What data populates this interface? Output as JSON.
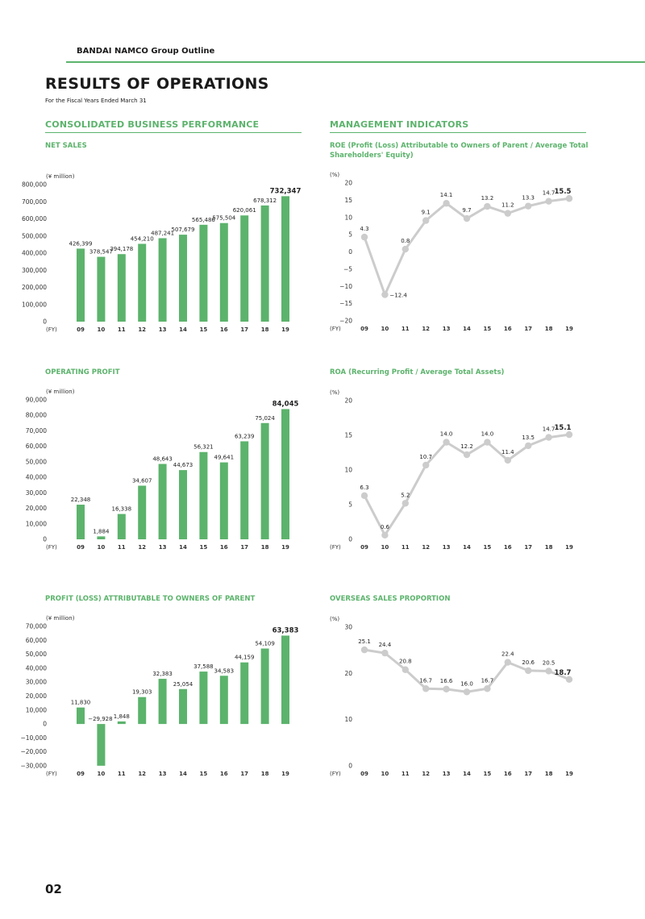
{
  "header": {
    "brand": "BANDAI NAMCO Group Outline",
    "title": "RESULTS OF OPERATIONS",
    "subtitle": "For the Fiscal Years Ended March 31"
  },
  "sections": {
    "left": "CONSOLIDATED BUSINESS PERFORMANCE",
    "right": "MANAGEMENT INDICATORS"
  },
  "page_number": "02",
  "colors": {
    "accent": "#5cb36c",
    "bar": "#5cb36c",
    "line": "#cccccc"
  },
  "chart_data": [
    {
      "id": "net_sales",
      "type": "bar",
      "title": "NET SALES",
      "unit_label": "(¥ million)",
      "x_label": "(FY)",
      "categories": [
        "09",
        "10",
        "11",
        "12",
        "13",
        "14",
        "15",
        "16",
        "17",
        "18",
        "19"
      ],
      "values": [
        426399,
        378547,
        394178,
        454210,
        487241,
        507679,
        565486,
        575504,
        620061,
        678312,
        732347
      ],
      "labels": [
        "426,399",
        "378,547",
        "394,178",
        "454,210",
        "487,241",
        "507,679",
        "565,486",
        "575,504",
        "620,061",
        "678,312",
        "732,347"
      ],
      "ylim": [
        0,
        800000
      ],
      "yticks": [
        0,
        100000,
        200000,
        300000,
        400000,
        500000,
        600000,
        700000,
        800000
      ],
      "ytick_labels": [
        "0",
        "100,000",
        "200,000",
        "300,000",
        "400,000",
        "500,000",
        "600,000",
        "700,000",
        "800,000"
      ]
    },
    {
      "id": "operating_profit",
      "type": "bar",
      "title": "OPERATING PROFIT",
      "unit_label": "(¥ million)",
      "x_label": "(FY)",
      "categories": [
        "09",
        "10",
        "11",
        "12",
        "13",
        "14",
        "15",
        "16",
        "17",
        "18",
        "19"
      ],
      "values": [
        22348,
        1884,
        16338,
        34607,
        48643,
        44673,
        56321,
        49641,
        63239,
        75024,
        84045
      ],
      "labels": [
        "22,348",
        "1,884",
        "16,338",
        "34,607",
        "48,643",
        "44,673",
        "56,321",
        "49,641",
        "63,239",
        "75,024",
        "84,045"
      ],
      "ylim": [
        0,
        90000
      ],
      "yticks": [
        0,
        10000,
        20000,
        30000,
        40000,
        50000,
        60000,
        70000,
        80000,
        90000
      ],
      "ytick_labels": [
        "0",
        "10,000",
        "20,000",
        "30,000",
        "40,000",
        "50,000",
        "60,000",
        "70,000",
        "80,000",
        "90,000"
      ]
    },
    {
      "id": "profit_attributable",
      "type": "bar",
      "title": "PROFIT (LOSS) ATTRIBUTABLE TO OWNERS OF PARENT",
      "unit_label": "(¥ million)",
      "x_label": "(FY)",
      "categories": [
        "09",
        "10",
        "11",
        "12",
        "13",
        "14",
        "15",
        "16",
        "17",
        "18",
        "19"
      ],
      "values": [
        11830,
        -29928,
        1848,
        19303,
        32383,
        25054,
        37588,
        34583,
        44159,
        54109,
        63383
      ],
      "labels": [
        "11,830",
        "−29,928",
        "1,848",
        "19,303",
        "32,383",
        "25,054",
        "37,588",
        "34,583",
        "44,159",
        "54,109",
        "63,383"
      ],
      "ylim": [
        -30000,
        70000
      ],
      "yticks": [
        -30000,
        -20000,
        -10000,
        0,
        10000,
        20000,
        30000,
        40000,
        50000,
        60000,
        70000
      ],
      "ytick_labels": [
        "−30,000",
        "−20,000",
        "−10,000",
        "0",
        "10,000",
        "20,000",
        "30,000",
        "40,000",
        "50,000",
        "60,000",
        "70,000"
      ]
    },
    {
      "id": "roe",
      "type": "line",
      "title": "ROE (Profit (Loss) Attributable to Owners of Parent / Average Total Shareholders' Equity)",
      "title_main": "ROE",
      "title_note": "(Profit (Loss) Attributable to Owners of Parent / Average Total Shareholders' Equity)",
      "unit_label": "(%)",
      "x_label": "(FY)",
      "categories": [
        "09",
        "10",
        "11",
        "12",
        "13",
        "14",
        "15",
        "16",
        "17",
        "18",
        "19"
      ],
      "values": [
        4.3,
        -12.4,
        0.8,
        9.1,
        14.1,
        9.7,
        13.2,
        11.2,
        13.3,
        14.7,
        15.5
      ],
      "labels": [
        "4.3",
        "−12.4",
        "0.8",
        "9.1",
        "14.1",
        "9.7",
        "13.2",
        "11.2",
        "13.3",
        "14.7",
        "15.5"
      ],
      "ylim": [
        -20,
        20
      ],
      "yticks": [
        -20,
        -15,
        -10,
        -5,
        0,
        5,
        10,
        15,
        20
      ],
      "ytick_labels": [
        "−20",
        "−15",
        "−10",
        "−5",
        "0",
        "5",
        "10",
        "15",
        "20"
      ]
    },
    {
      "id": "roa",
      "type": "line",
      "title": "ROA (Recurring Profit / Average Total Assets)",
      "title_main": "ROA",
      "title_note": "(Recurring Profit / Average Total Assets)",
      "unit_label": "(%)",
      "x_label": "(FY)",
      "categories": [
        "09",
        "10",
        "11",
        "12",
        "13",
        "14",
        "15",
        "16",
        "17",
        "18",
        "19"
      ],
      "values": [
        6.3,
        0.6,
        5.2,
        10.7,
        14.0,
        12.2,
        14.0,
        11.4,
        13.5,
        14.7,
        15.1
      ],
      "labels": [
        "6.3",
        "0.6",
        "5.2",
        "10.7",
        "14.0",
        "12.2",
        "14.0",
        "11.4",
        "13.5",
        "14.7",
        "15.1"
      ],
      "ylim": [
        0,
        20
      ],
      "yticks": [
        0,
        5,
        10,
        15,
        20
      ],
      "ytick_labels": [
        "0",
        "5",
        "10",
        "15",
        "20"
      ]
    },
    {
      "id": "overseas",
      "type": "line",
      "title": "OVERSEAS SALES PROPORTION",
      "unit_label": "(%)",
      "x_label": "(FY)",
      "categories": [
        "09",
        "10",
        "11",
        "12",
        "13",
        "14",
        "15",
        "16",
        "17",
        "18",
        "19"
      ],
      "values": [
        25.1,
        24.4,
        20.8,
        16.7,
        16.6,
        16.0,
        16.7,
        22.4,
        20.6,
        20.5,
        18.7
      ],
      "labels": [
        "25.1",
        "24.4",
        "20.8",
        "16.7",
        "16.6",
        "16.0",
        "16.7",
        "22.4",
        "20.6",
        "20.5",
        "18.7"
      ],
      "ylim": [
        0,
        30
      ],
      "yticks": [
        0,
        10,
        20,
        30
      ],
      "ytick_labels": [
        "0",
        "10",
        "20",
        "30"
      ]
    }
  ]
}
